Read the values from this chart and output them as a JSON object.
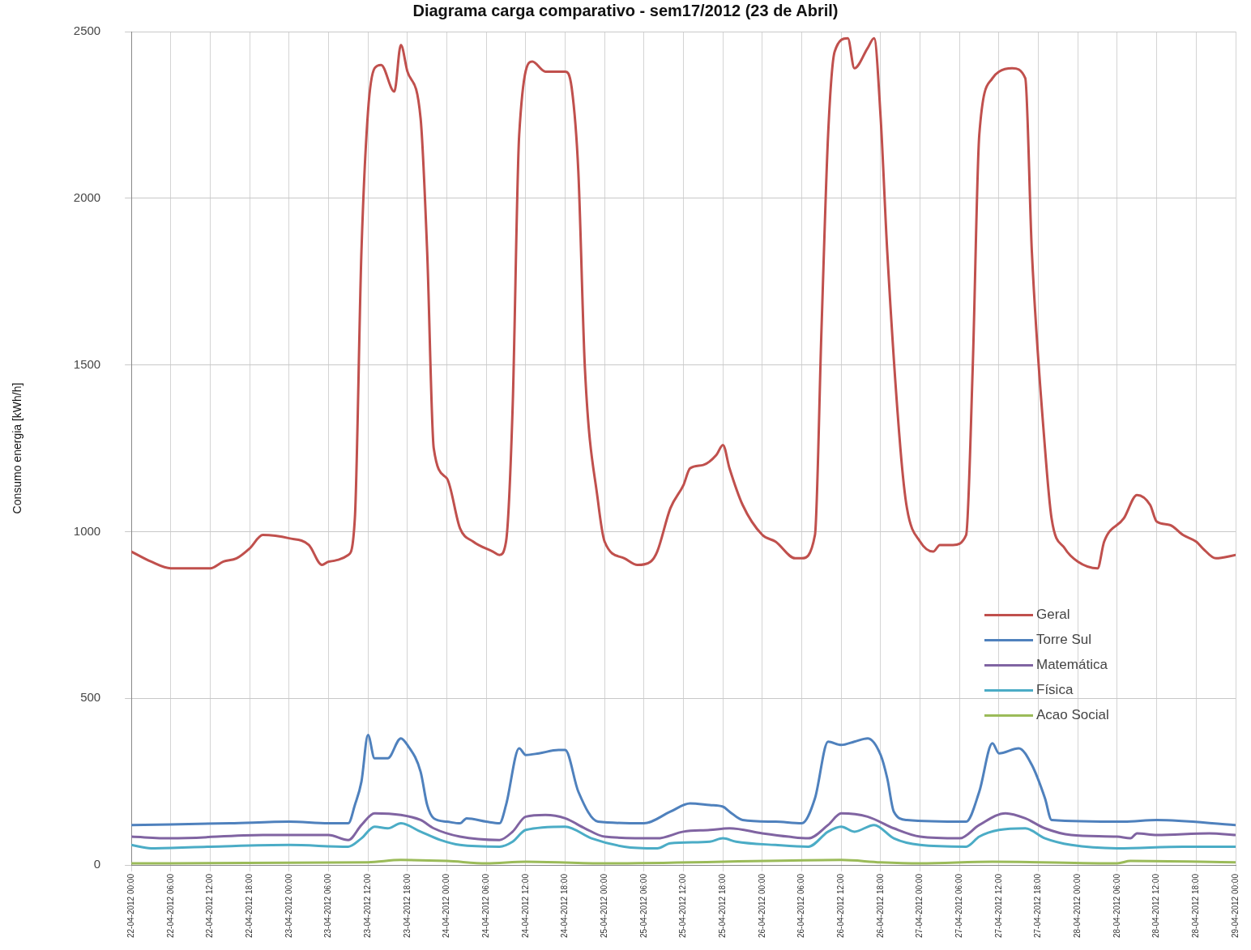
{
  "chart_data": {
    "type": "line",
    "title": "Diagrama carga comparativo - sem17/2012  (23 de Abril)",
    "ylabel": "Consumo energia [kWh/h]",
    "xlim": [
      "2012-04-22T00:00",
      "2012-04-29T00:00"
    ],
    "ylim": [
      0,
      2500
    ],
    "yticks": [
      0,
      500,
      1000,
      1500,
      2000,
      2500
    ],
    "xticks": [
      {
        "value": "2012-04-22T00:00",
        "label": "22-04-2012 00:00"
      },
      {
        "value": "2012-04-22T06:00",
        "label": "22-04-2012 06:00"
      },
      {
        "value": "2012-04-22T12:00",
        "label": "22-04-2012 12:00"
      },
      {
        "value": "2012-04-22T18:00",
        "label": "22-04-2012 18:00"
      },
      {
        "value": "2012-04-23T00:00",
        "label": "23-04-2012 00:00"
      },
      {
        "value": "2012-04-23T06:00",
        "label": "23-04-2012 06:00"
      },
      {
        "value": "2012-04-23T12:00",
        "label": "23-04-2012 12:00"
      },
      {
        "value": "2012-04-23T18:00",
        "label": "23-04-2012 18:00"
      },
      {
        "value": "2012-04-24T00:00",
        "label": "24-04-2012 00:00"
      },
      {
        "value": "2012-04-24T06:00",
        "label": "24-04-2012 06:00"
      },
      {
        "value": "2012-04-24T12:00",
        "label": "24-04-2012 12:00"
      },
      {
        "value": "2012-04-24T18:00",
        "label": "24-04-2012 18:00"
      },
      {
        "value": "2012-04-25T00:00",
        "label": "25-04-2012 00:00"
      },
      {
        "value": "2012-04-25T06:00",
        "label": "25-04-2012 06:00"
      },
      {
        "value": "2012-04-25T12:00",
        "label": "25-04-2012 12:00"
      },
      {
        "value": "2012-04-25T18:00",
        "label": "25-04-2012 18:00"
      },
      {
        "value": "2012-04-26T00:00",
        "label": "26-04-2012 00:00"
      },
      {
        "value": "2012-04-26T06:00",
        "label": "26-04-2012 06:00"
      },
      {
        "value": "2012-04-26T12:00",
        "label": "26-04-2012 12:00"
      },
      {
        "value": "2012-04-26T18:00",
        "label": "26-04-2012 18:00"
      },
      {
        "value": "2012-04-27T00:00",
        "label": "27-04-2012 00:00"
      },
      {
        "value": "2012-04-27T06:00",
        "label": "27-04-2012 06:00"
      },
      {
        "value": "2012-04-27T12:00",
        "label": "27-04-2012 12:00"
      },
      {
        "value": "2012-04-27T18:00",
        "label": "27-04-2012 18:00"
      },
      {
        "value": "2012-04-28T00:00",
        "label": "28-04-2012 00:00"
      },
      {
        "value": "2012-04-28T06:00",
        "label": "28-04-2012 06:00"
      },
      {
        "value": "2012-04-28T12:00",
        "label": "28-04-2012 12:00"
      },
      {
        "value": "2012-04-28T18:00",
        "label": "28-04-2012 18:00"
      },
      {
        "value": "2012-04-29T00:00",
        "label": "29-04-2012 00:00"
      }
    ],
    "grid": true,
    "legend": "right",
    "marker": "none",
    "line_style": "solid",
    "series": [
      {
        "name": "Geral",
        "color": "#c0504d",
        "x": [
          "2012-04-22T00:00",
          "2012-04-22T03:00",
          "2012-04-22T06:00",
          "2012-04-22T12:00",
          "2012-04-22T14:00",
          "2012-04-22T16:00",
          "2012-04-22T18:00",
          "2012-04-22T20:00",
          "2012-04-23T00:00",
          "2012-04-23T03:00",
          "2012-04-23T05:00",
          "2012-04-23T06:00",
          "2012-04-23T09:00",
          "2012-04-23T10:00",
          "2012-04-23T11:00",
          "2012-04-23T12:00",
          "2012-04-23T13:00",
          "2012-04-23T14:00",
          "2012-04-23T16:00",
          "2012-04-23T17:00",
          "2012-04-23T18:00",
          "2012-04-23T20:00",
          "2012-04-23T21:00",
          "2012-04-23T22:00",
          "2012-04-24T00:00",
          "2012-04-24T02:00",
          "2012-04-24T04:00",
          "2012-04-24T07:00",
          "2012-04-24T08:00",
          "2012-04-24T09:00",
          "2012-04-24T10:00",
          "2012-04-24T11:00",
          "2012-04-24T13:00",
          "2012-04-24T15:00",
          "2012-04-24T18:00",
          "2012-04-24T19:00",
          "2012-04-24T20:00",
          "2012-04-24T21:00",
          "2012-04-24T23:00",
          "2012-04-25T00:00",
          "2012-04-25T03:00",
          "2012-04-25T05:00",
          "2012-04-25T07:00",
          "2012-04-25T08:00",
          "2012-04-25T10:00",
          "2012-04-25T12:00",
          "2012-04-25T13:00",
          "2012-04-25T15:00",
          "2012-04-25T17:00",
          "2012-04-25T18:00",
          "2012-04-25T19:00",
          "2012-04-25T21:00",
          "2012-04-26T00:00",
          "2012-04-26T02:00",
          "2012-04-26T05:00",
          "2012-04-26T06:00",
          "2012-04-26T08:00",
          "2012-04-26T09:00",
          "2012-04-26T10:00",
          "2012-04-26T11:00",
          "2012-04-26T13:00",
          "2012-04-26T14:00",
          "2012-04-26T16:00",
          "2012-04-26T17:00",
          "2012-04-26T18:00",
          "2012-04-26T19:00",
          "2012-04-26T21:00",
          "2012-04-26T22:00",
          "2012-04-27T00:00",
          "2012-04-27T02:00",
          "2012-04-27T03:00",
          "2012-04-27T05:00",
          "2012-04-27T07:00",
          "2012-04-27T08:00",
          "2012-04-27T09:00",
          "2012-04-27T11:00",
          "2012-04-27T12:00",
          "2012-04-27T14:00",
          "2012-04-27T16:00",
          "2012-04-27T17:00",
          "2012-04-27T19:00",
          "2012-04-27T20:00",
          "2012-04-27T22:00",
          "2012-04-28T00:00",
          "2012-04-28T03:00",
          "2012-04-28T04:00",
          "2012-04-28T07:00",
          "2012-04-28T09:00",
          "2012-04-28T11:00",
          "2012-04-28T12:00",
          "2012-04-28T14:00",
          "2012-04-28T16:00",
          "2012-04-28T18:00",
          "2012-04-28T19:00",
          "2012-04-28T21:00",
          "2012-04-29T00:00"
        ],
        "values": [
          940,
          910,
          890,
          890,
          910,
          920,
          950,
          990,
          980,
          960,
          900,
          910,
          930,
          1040,
          1840,
          2260,
          2390,
          2400,
          2320,
          2460,
          2380,
          2240,
          1840,
          1250,
          1160,
          1010,
          970,
          940,
          930,
          970,
          1370,
          2190,
          2410,
          2380,
          2380,
          2330,
          2080,
          1490,
          1090,
          970,
          920,
          900,
          910,
          940,
          1070,
          1140,
          1190,
          1200,
          1230,
          1260,
          1190,
          1080,
          990,
          970,
          920,
          920,
          990,
          1610,
          2190,
          2440,
          2480,
          2390,
          2450,
          2480,
          2240,
          1840,
          1250,
          1070,
          970,
          940,
          960,
          960,
          990,
          1490,
          2190,
          2360,
          2380,
          2390,
          2360,
          1840,
          1250,
          1040,
          950,
          910,
          890,
          970,
          1040,
          1110,
          1080,
          1030,
          1020,
          990,
          970,
          950,
          920,
          930
        ]
      },
      {
        "name": "Torre Sul",
        "color": "#4f81bd",
        "x": [
          "2012-04-22T00:00",
          "2012-04-22T15:00",
          "2012-04-23T00:00",
          "2012-04-23T06:00",
          "2012-04-23T09:00",
          "2012-04-23T10:00",
          "2012-04-23T11:00",
          "2012-04-23T12:00",
          "2012-04-23T13:00",
          "2012-04-23T15:00",
          "2012-04-23T17:00",
          "2012-04-23T18:00",
          "2012-04-23T20:00",
          "2012-04-23T21:00",
          "2012-04-23T22:00",
          "2012-04-24T00:00",
          "2012-04-24T02:00",
          "2012-04-24T03:00",
          "2012-04-24T06:00",
          "2012-04-24T08:00",
          "2012-04-24T09:00",
          "2012-04-24T11:00",
          "2012-04-24T12:00",
          "2012-04-24T14:00",
          "2012-04-24T17:00",
          "2012-04-24T18:00",
          "2012-04-24T20:00",
          "2012-04-24T23:00",
          "2012-04-25T06:00",
          "2012-04-25T10:00",
          "2012-04-25T13:00",
          "2012-04-25T16:00",
          "2012-04-25T18:00",
          "2012-04-25T19:00",
          "2012-04-25T21:00",
          "2012-04-26T02:00",
          "2012-04-26T06:00",
          "2012-04-26T08:00",
          "2012-04-26T10:00",
          "2012-04-26T12:00",
          "2012-04-26T14:00",
          "2012-04-26T16:00",
          "2012-04-26T18:00",
          "2012-04-26T19:00",
          "2012-04-26T20:00",
          "2012-04-26T22:00",
          "2012-04-27T07:00",
          "2012-04-27T09:00",
          "2012-04-27T11:00",
          "2012-04-27T12:00",
          "2012-04-27T15:00",
          "2012-04-27T17:00",
          "2012-04-27T19:00",
          "2012-04-27T20:00",
          "2012-04-28T07:00",
          "2012-04-28T12:00",
          "2012-04-29T00:00"
        ],
        "values": [
          120,
          125,
          130,
          125,
          125,
          180,
          250,
          390,
          320,
          320,
          380,
          360,
          280,
          180,
          140,
          130,
          125,
          140,
          130,
          125,
          180,
          350,
          330,
          335,
          345,
          345,
          220,
          130,
          125,
          160,
          185,
          180,
          175,
          160,
          135,
          130,
          125,
          200,
          370,
          360,
          370,
          380,
          330,
          260,
          160,
          135,
          130,
          220,
          365,
          335,
          350,
          300,
          200,
          135,
          130,
          135,
          120
        ]
      },
      {
        "name": "Matemática",
        "color": "#8064a2",
        "x": [
          "2012-04-22T00:00",
          "2012-04-22T06:00",
          "2012-04-22T20:00",
          "2012-04-23T06:00",
          "2012-04-23T09:00",
          "2012-04-23T11:00",
          "2012-04-23T13:00",
          "2012-04-23T17:00",
          "2012-04-23T20:00",
          "2012-04-23T22:00",
          "2012-04-24T02:00",
          "2012-04-24T08:00",
          "2012-04-24T10:00",
          "2012-04-24T12:00",
          "2012-04-24T15:00",
          "2012-04-24T18:00",
          "2012-04-24T21:00",
          "2012-04-25T00:00",
          "2012-04-25T08:00",
          "2012-04-25T12:00",
          "2012-04-25T16:00",
          "2012-04-25T19:00",
          "2012-04-26T00:00",
          "2012-04-26T04:00",
          "2012-04-26T07:00",
          "2012-04-26T10:00",
          "2012-04-26T12:00",
          "2012-04-26T16:00",
          "2012-04-26T20:00",
          "2012-04-27T00:00",
          "2012-04-27T06:00",
          "2012-04-27T09:00",
          "2012-04-27T13:00",
          "2012-04-27T16:00",
          "2012-04-27T19:00",
          "2012-04-27T23:00",
          "2012-04-28T06:00",
          "2012-04-28T08:00",
          "2012-04-28T09:00",
          "2012-04-28T12:00",
          "2012-04-28T20:00",
          "2012-04-29T00:00"
        ],
        "values": [
          85,
          80,
          90,
          90,
          75,
          120,
          155,
          150,
          135,
          110,
          85,
          75,
          100,
          145,
          150,
          140,
          110,
          85,
          80,
          100,
          105,
          110,
          95,
          85,
          80,
          120,
          155,
          145,
          110,
          85,
          80,
          120,
          155,
          140,
          110,
          90,
          85,
          80,
          95,
          90,
          95,
          90
        ]
      },
      {
        "name": "Física",
        "color": "#4bacc6",
        "x": [
          "2012-04-22T00:00",
          "2012-04-22T03:00",
          "2012-04-22T12:00",
          "2012-04-23T00:00",
          "2012-04-23T09:00",
          "2012-04-23T11:00",
          "2012-04-23T13:00",
          "2012-04-23T15:00",
          "2012-04-23T17:00",
          "2012-04-23T20:00",
          "2012-04-23T23:00",
          "2012-04-24T02:00",
          "2012-04-24T08:00",
          "2012-04-24T10:00",
          "2012-04-24T12:00",
          "2012-04-24T18:00",
          "2012-04-24T22:00",
          "2012-04-25T03:00",
          "2012-04-25T08:00",
          "2012-04-25T10:00",
          "2012-04-25T16:00",
          "2012-04-25T18:00",
          "2012-04-25T20:00",
          "2012-04-26T02:00",
          "2012-04-26T07:00",
          "2012-04-26T10:00",
          "2012-04-26T12:00",
          "2012-04-26T14:00",
          "2012-04-26T17:00",
          "2012-04-26T20:00",
          "2012-04-27T00:00",
          "2012-04-27T07:00",
          "2012-04-27T09:00",
          "2012-04-27T12:00",
          "2012-04-27T16:00",
          "2012-04-27T19:00",
          "2012-04-27T23:00",
          "2012-04-28T06:00",
          "2012-04-28T16:00",
          "2012-04-29T00:00"
        ],
        "values": [
          60,
          50,
          55,
          60,
          55,
          80,
          115,
          110,
          125,
          100,
          75,
          60,
          55,
          70,
          105,
          115,
          80,
          55,
          50,
          65,
          70,
          80,
          70,
          60,
          55,
          100,
          115,
          100,
          120,
          80,
          60,
          55,
          85,
          105,
          110,
          80,
          60,
          50,
          55,
          55
        ]
      },
      {
        "name": "Acao Social",
        "color": "#9bbb59",
        "x": [
          "2012-04-22T00:00",
          "2012-04-23T12:00",
          "2012-04-23T17:00",
          "2012-04-24T00:00",
          "2012-04-24T06:00",
          "2012-04-24T12:00",
          "2012-04-25T00:00",
          "2012-04-26T12:00",
          "2012-04-26T18:00",
          "2012-04-27T00:00",
          "2012-04-27T11:00",
          "2012-04-28T06:00",
          "2012-04-28T08:00",
          "2012-04-29T00:00"
        ],
        "values": [
          5,
          8,
          15,
          12,
          5,
          10,
          5,
          15,
          8,
          5,
          10,
          5,
          12,
          8
        ]
      }
    ]
  }
}
